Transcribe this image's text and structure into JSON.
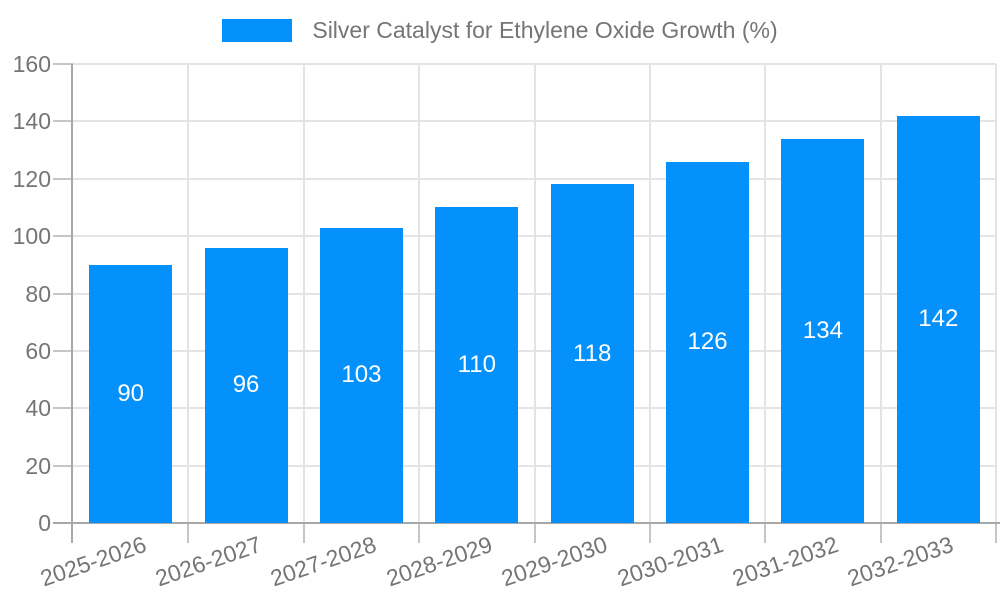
{
  "legend": {
    "series_label": "Silver Catalyst for Ethylene Oxide Growth (%)"
  },
  "chart_data": {
    "type": "bar",
    "title": "Silver Catalyst for Ethylene Oxide Growth (%)",
    "categories": [
      "2025-2026",
      "2026-2027",
      "2027-2028",
      "2028-2029",
      "2029-2030",
      "2030-2031",
      "2031-2032",
      "2032-2033"
    ],
    "series": [
      {
        "name": "Silver Catalyst for Ethylene Oxide Growth (%)",
        "values": [
          90,
          96,
          103,
          110,
          118,
          126,
          134,
          142
        ]
      }
    ],
    "bar_value_labels": [
      "90",
      "96",
      "103",
      "110",
      "118",
      "126",
      "134",
      "142"
    ],
    "xlabel": "",
    "ylabel": "",
    "ylim": [
      0,
      160
    ],
    "yticks": [
      0,
      20,
      40,
      60,
      80,
      100,
      120,
      140,
      160
    ],
    "grid": true,
    "legend_position": "top-center",
    "x_label_rotation_deg": -19
  },
  "colors": {
    "background": "#ffffff",
    "bar": "#0591fb",
    "bar_label_text": "#ffffff",
    "axis_line": "#a8a8a8",
    "grid_line": "#e4e4e4",
    "tick_mark": "#c6c6c6",
    "label_text": "#757575"
  }
}
